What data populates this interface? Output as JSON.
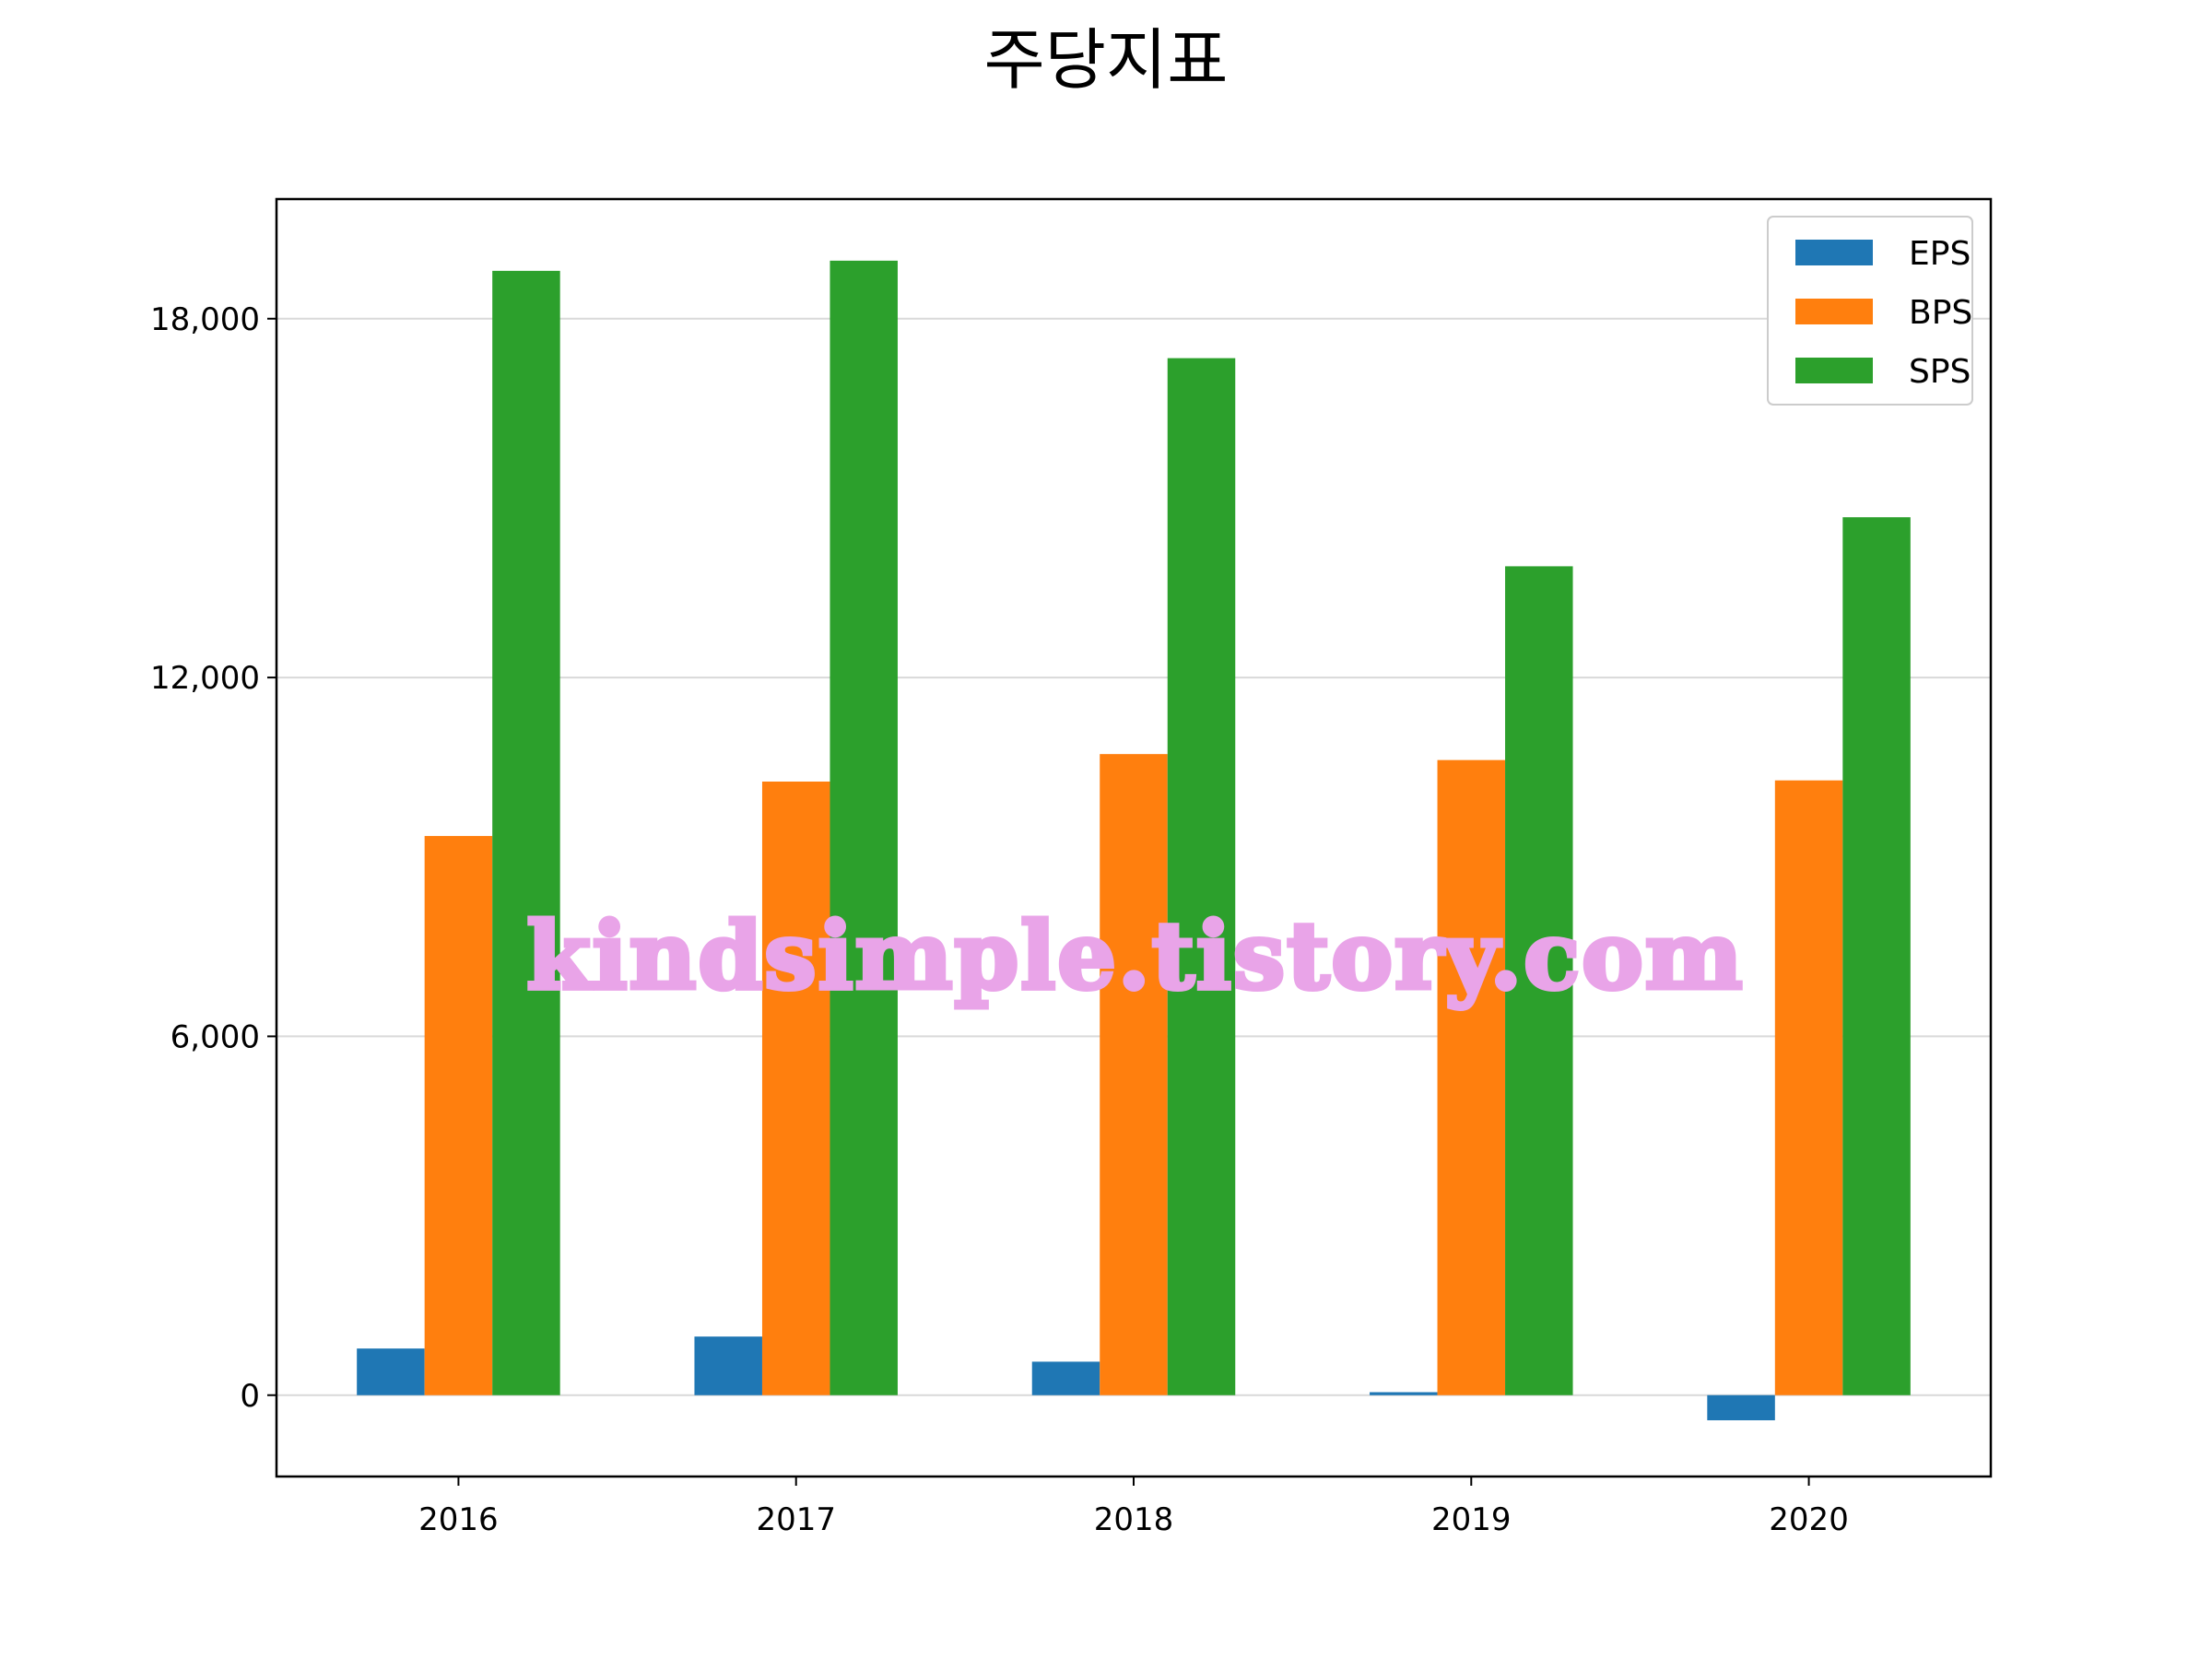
{
  "chart_data": {
    "type": "bar",
    "title": "주당지표",
    "xlabel": "",
    "ylabel": "",
    "categories": [
      "2016",
      "2017",
      "2018",
      "2019",
      "2020"
    ],
    "series": [
      {
        "name": "EPS",
        "color": "#1f77b4",
        "values": [
          780,
          980,
          560,
          50,
          -420
        ]
      },
      {
        "name": "BPS",
        "color": "#ff7f0e",
        "values": [
          9350,
          10260,
          10720,
          10620,
          10280
        ]
      },
      {
        "name": "SPS",
        "color": "#2ca02c",
        "values": [
          18800,
          18970,
          17340,
          13860,
          14680
        ]
      }
    ],
    "ylim": [
      -1360,
      20000
    ],
    "yticks": [
      0,
      6000,
      12000,
      18000
    ],
    "ytick_labels": [
      "0",
      "6,000",
      "12,000",
      "18,000"
    ],
    "grid": "y",
    "legend_position": "upper right",
    "watermark": "kindsimple.tistory.com"
  }
}
